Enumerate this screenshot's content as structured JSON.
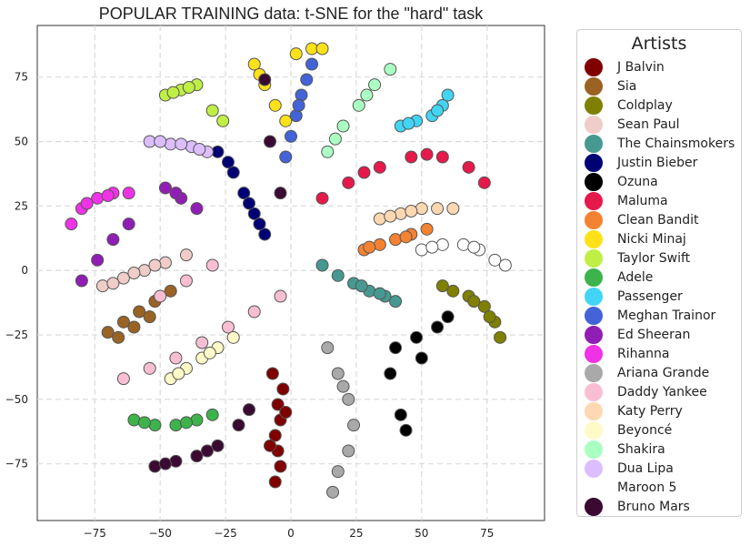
{
  "chart_data": {
    "type": "scatter",
    "title": "POPULAR TRAINING data: t-SNE for the \"hard\" task",
    "xlabel": "",
    "ylabel": "",
    "xlim": [
      -97,
      97
    ],
    "ylim": [
      -97,
      95
    ],
    "xticks": [
      -75,
      -50,
      -25,
      0,
      25,
      50,
      75
    ],
    "yticks": [
      -75,
      -50,
      -25,
      0,
      25,
      50,
      75
    ],
    "x_tick_labels": [
      "−75",
      "−50",
      "−25",
      "0",
      "25",
      "50",
      "75"
    ],
    "y_tick_labels": [
      "−75",
      "−50",
      "−25",
      "0",
      "25",
      "50",
      "75"
    ],
    "grid": true,
    "legend_title": "Artists",
    "legend_position": "outside-right",
    "series": [
      {
        "name": "J Balvin",
        "color": "#800000",
        "points": [
          [
            -5,
            -52
          ],
          [
            -4,
            -58
          ],
          [
            -6,
            -64
          ],
          [
            -5,
            -70
          ],
          [
            -4,
            -76
          ],
          [
            -6,
            -82
          ],
          [
            -3,
            -46
          ],
          [
            -7,
            -40
          ],
          [
            -2,
            -55
          ],
          [
            -8,
            -68
          ]
        ]
      },
      {
        "name": "Sia",
        "color": "#9a6324",
        "points": [
          [
            -70,
            -24
          ],
          [
            -64,
            -20
          ],
          [
            -58,
            -16
          ],
          [
            -52,
            -12
          ],
          [
            -46,
            -8
          ],
          [
            -66,
            -26
          ],
          [
            -60,
            -22
          ],
          [
            -54,
            -18
          ]
        ]
      },
      {
        "name": "Coldplay",
        "color": "#808000",
        "points": [
          [
            62,
            -8
          ],
          [
            68,
            -10
          ],
          [
            74,
            -14
          ],
          [
            78,
            -20
          ],
          [
            80,
            -26
          ],
          [
            58,
            -6
          ],
          [
            70,
            -12
          ],
          [
            76,
            -18
          ]
        ]
      },
      {
        "name": "Sean Paul",
        "color": "#f0cdc8",
        "points": [
          [
            -72,
            -6
          ],
          [
            -64,
            -3
          ],
          [
            -56,
            0
          ],
          [
            -48,
            3
          ],
          [
            -40,
            6
          ],
          [
            -68,
            -5
          ],
          [
            -60,
            -1
          ],
          [
            -52,
            2
          ]
        ]
      },
      {
        "name": "The Chainsmokers",
        "color": "#469990",
        "points": [
          [
            18,
            -2
          ],
          [
            24,
            -5
          ],
          [
            30,
            -8
          ],
          [
            36,
            -10
          ],
          [
            40,
            -12
          ],
          [
            12,
            2
          ],
          [
            27,
            -6
          ],
          [
            34,
            -9
          ]
        ]
      },
      {
        "name": "Justin Bieber",
        "color": "#000075",
        "points": [
          [
            -28,
            46
          ],
          [
            -22,
            38
          ],
          [
            -18,
            30
          ],
          [
            -14,
            22
          ],
          [
            -10,
            14
          ],
          [
            -24,
            42
          ],
          [
            -16,
            26
          ],
          [
            -12,
            18
          ]
        ]
      },
      {
        "name": "Ozuna",
        "color": "#000000",
        "points": [
          [
            40,
            -30
          ],
          [
            48,
            -26
          ],
          [
            56,
            -22
          ],
          [
            60,
            -18
          ],
          [
            38,
            -40
          ],
          [
            42,
            -56
          ],
          [
            44,
            -62
          ],
          [
            50,
            -34
          ]
        ]
      },
      {
        "name": "Maluma",
        "color": "#e6194b",
        "points": [
          [
            12,
            28
          ],
          [
            22,
            34
          ],
          [
            34,
            40
          ],
          [
            46,
            44
          ],
          [
            58,
            44
          ],
          [
            68,
            40
          ],
          [
            74,
            34
          ],
          [
            28,
            38
          ],
          [
            52,
            45
          ]
        ]
      },
      {
        "name": "Clean Bandit",
        "color": "#f58231",
        "points": [
          [
            28,
            8
          ],
          [
            34,
            10
          ],
          [
            40,
            12
          ],
          [
            46,
            14
          ],
          [
            52,
            16
          ],
          [
            30,
            9
          ],
          [
            44,
            13
          ]
        ]
      },
      {
        "name": "Nicki Minaj",
        "color": "#ffe119",
        "points": [
          [
            -14,
            80
          ],
          [
            -10,
            72
          ],
          [
            -6,
            64
          ],
          [
            -2,
            58
          ],
          [
            2,
            84
          ],
          [
            8,
            86
          ],
          [
            12,
            86
          ],
          [
            -12,
            76
          ]
        ]
      },
      {
        "name": "Taylor Swift",
        "color": "#bfef45",
        "points": [
          [
            -48,
            68
          ],
          [
            -42,
            70
          ],
          [
            -36,
            72
          ],
          [
            -30,
            62
          ],
          [
            -26,
            58
          ],
          [
            -45,
            69
          ],
          [
            -39,
            71
          ]
        ]
      },
      {
        "name": "Adele",
        "color": "#3cb44b",
        "points": [
          [
            -60,
            -58
          ],
          [
            -52,
            -60
          ],
          [
            -44,
            -60
          ],
          [
            -36,
            -58
          ],
          [
            -30,
            -56
          ],
          [
            -56,
            -59
          ],
          [
            -40,
            -59
          ]
        ]
      },
      {
        "name": "Passenger",
        "color": "#42d4f4",
        "points": [
          [
            42,
            56
          ],
          [
            48,
            58
          ],
          [
            54,
            60
          ],
          [
            58,
            64
          ],
          [
            60,
            68
          ],
          [
            45,
            57
          ],
          [
            56,
            62
          ]
        ]
      },
      {
        "name": "Meghan Trainor",
        "color": "#4363d8",
        "points": [
          [
            -2,
            44
          ],
          [
            0,
            52
          ],
          [
            2,
            60
          ],
          [
            4,
            68
          ],
          [
            6,
            74
          ],
          [
            8,
            80
          ],
          [
            3,
            64
          ]
        ]
      },
      {
        "name": "Ed Sheeran",
        "color": "#911eb4",
        "points": [
          [
            -48,
            32
          ],
          [
            -42,
            28
          ],
          [
            -36,
            24
          ],
          [
            -80,
            -4
          ],
          [
            -74,
            4
          ],
          [
            -68,
            12
          ],
          [
            -62,
            18
          ],
          [
            -44,
            30
          ]
        ]
      },
      {
        "name": "Rihanna",
        "color": "#f032e6",
        "points": [
          [
            -84,
            18
          ],
          [
            -80,
            24
          ],
          [
            -74,
            28
          ],
          [
            -68,
            30
          ],
          [
            -62,
            30
          ],
          [
            -78,
            26
          ],
          [
            -70,
            29
          ]
        ]
      },
      {
        "name": "Ariana Grande",
        "color": "#a9a9a9",
        "points": [
          [
            14,
            -30
          ],
          [
            18,
            -40
          ],
          [
            22,
            -50
          ],
          [
            24,
            -60
          ],
          [
            22,
            -70
          ],
          [
            18,
            -78
          ],
          [
            16,
            -86
          ],
          [
            20,
            -45
          ]
        ]
      },
      {
        "name": "Daddy Yankee",
        "color": "#fabed4",
        "points": [
          [
            -64,
            -42
          ],
          [
            -54,
            -38
          ],
          [
            -44,
            -34
          ],
          [
            -34,
            -28
          ],
          [
            -24,
            -22
          ],
          [
            -14,
            -16
          ],
          [
            -4,
            -10
          ],
          [
            -50,
            -10
          ],
          [
            -40,
            -4
          ],
          [
            -30,
            2
          ]
        ]
      },
      {
        "name": "Katy Perry",
        "color": "#ffd8b1",
        "points": [
          [
            34,
            20
          ],
          [
            42,
            22
          ],
          [
            50,
            24
          ],
          [
            56,
            24
          ],
          [
            62,
            24
          ],
          [
            38,
            21
          ],
          [
            46,
            23
          ]
        ]
      },
      {
        "name": "Beyoncé",
        "color": "#fffac8",
        "points": [
          [
            -46,
            -42
          ],
          [
            -40,
            -38
          ],
          [
            -34,
            -34
          ],
          [
            -28,
            -30
          ],
          [
            -22,
            -26
          ],
          [
            -43,
            -40
          ],
          [
            -31,
            -32
          ]
        ]
      },
      {
        "name": "Shakira",
        "color": "#aaffc3",
        "points": [
          [
            14,
            46
          ],
          [
            20,
            56
          ],
          [
            26,
            64
          ],
          [
            32,
            72
          ],
          [
            38,
            78
          ],
          [
            17,
            51
          ],
          [
            29,
            68
          ]
        ]
      },
      {
        "name": "Dua Lipa",
        "color": "#dcbeff",
        "points": [
          [
            -54,
            50
          ],
          [
            -46,
            49
          ],
          [
            -38,
            48
          ],
          [
            -32,
            46
          ],
          [
            -50,
            50
          ],
          [
            -42,
            49
          ],
          [
            -35,
            47
          ]
        ]
      },
      {
        "name": "Maroon 5",
        "color": "#ffffff",
        "points": [
          [
            50,
            8
          ],
          [
            58,
            10
          ],
          [
            66,
            10
          ],
          [
            72,
            8
          ],
          [
            78,
            4
          ],
          [
            82,
            2
          ],
          [
            54,
            9
          ],
          [
            70,
            9
          ]
        ]
      },
      {
        "name": "Bruno Mars",
        "color": "#3a0a32",
        "points": [
          [
            -52,
            -76
          ],
          [
            -44,
            -74
          ],
          [
            -36,
            -72
          ],
          [
            -28,
            -68
          ],
          [
            -20,
            -60
          ],
          [
            -16,
            -54
          ],
          [
            -48,
            -75
          ],
          [
            -32,
            -70
          ],
          [
            -10,
            74
          ],
          [
            -8,
            50
          ],
          [
            -4,
            30
          ]
        ]
      }
    ]
  }
}
